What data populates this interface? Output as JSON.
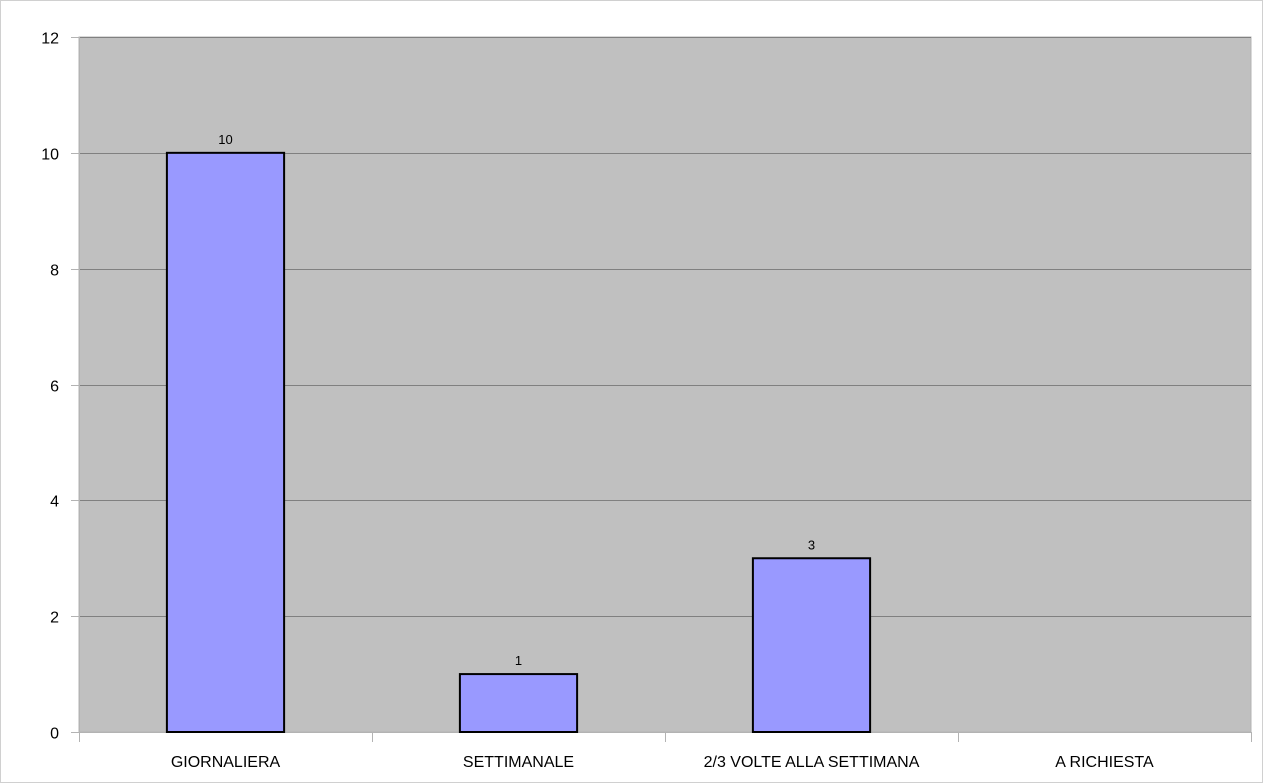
{
  "chart_data": {
    "type": "bar",
    "categories": [
      "GIORNALIERA",
      "SETTIMANALE",
      "2/3 VOLTE ALLA SETTIMANA",
      "A RICHIESTA"
    ],
    "values": [
      10,
      1,
      3,
      0
    ],
    "data_labels": [
      "10",
      "1",
      "3",
      ""
    ],
    "title": "",
    "xlabel": "",
    "ylabel": "",
    "ylim": [
      0,
      12
    ],
    "yticks": [
      0,
      2,
      4,
      6,
      8,
      10,
      12
    ],
    "ytick_labels": [
      "0",
      "2",
      "4",
      "6",
      "8",
      "10",
      "12"
    ],
    "grid": true,
    "legend": "none",
    "colors": {
      "plot_background": "#c0c0c0",
      "bar_fill": "#9999ff",
      "bar_stroke": "#000000",
      "gridline": "#808080",
      "axis": "#b3b3b3"
    }
  }
}
